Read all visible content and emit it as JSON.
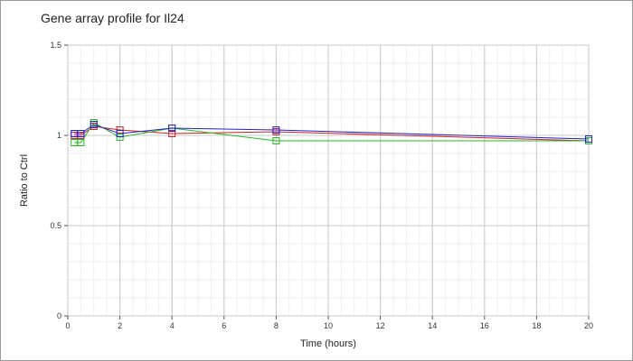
{
  "chart_data": {
    "type": "line",
    "title": "Gene array profile for Il24",
    "xlabel": "Time (hours)",
    "ylabel": "Ratio to Ctrl",
    "xlim": [
      0,
      20
    ],
    "ylim": [
      0,
      1.5
    ],
    "x_ticks": [
      0,
      2,
      4,
      6,
      8,
      10,
      12,
      14,
      16,
      18,
      20
    ],
    "y_ticks": [
      0,
      0.5,
      1,
      1.5
    ],
    "x_tick_labels": [
      "0",
      "2",
      "4",
      "6",
      "8",
      "10",
      "12",
      "14",
      "16",
      "18",
      "20"
    ],
    "y_tick_labels": [
      "0",
      "0.5",
      "1",
      "1.5"
    ],
    "grid": true,
    "legend": false,
    "marker": "square-open",
    "series": [
      {
        "color": "#cc2222",
        "x": [
          0.25,
          0.5,
          1,
          2,
          4,
          8,
          20
        ],
        "y": [
          1.0,
          1.0,
          1.05,
          1.03,
          1.01,
          1.02,
          0.97
        ]
      },
      {
        "color": "#22bb22",
        "x": [
          0.25,
          0.5,
          1,
          2,
          4,
          8,
          20
        ],
        "y": [
          0.96,
          0.96,
          1.07,
          0.99,
          1.04,
          0.97,
          0.97
        ]
      },
      {
        "color": "#2222cc",
        "x": [
          0.25,
          0.5,
          1,
          2,
          4,
          8,
          20
        ],
        "y": [
          1.01,
          1.01,
          1.06,
          1.01,
          1.04,
          1.03,
          0.98
        ]
      }
    ]
  }
}
